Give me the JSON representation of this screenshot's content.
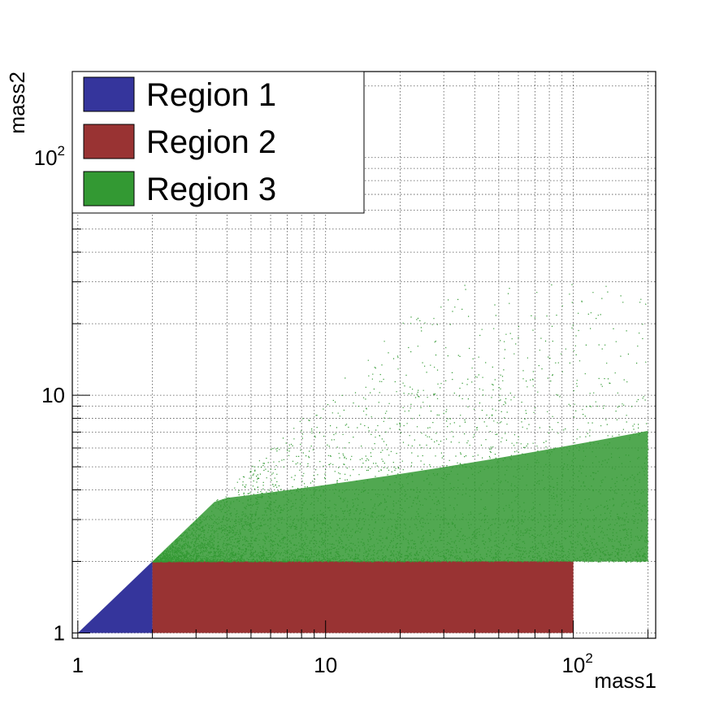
{
  "chart_data": {
    "type": "scatter",
    "xlabel": "mass1",
    "ylabel": "mass2",
    "x_scale": "log",
    "y_scale": "log",
    "xlim": [
      0.95,
      215
    ],
    "ylim": [
      0.95,
      230
    ],
    "grid": true,
    "grid_style": "dotted",
    "x_tick_labels": [
      {
        "value": 1,
        "base": "1",
        "exp": ""
      },
      {
        "value": 10,
        "base": "10",
        "exp": ""
      },
      {
        "value": 100,
        "base": "10",
        "exp": "2"
      }
    ],
    "y_tick_labels": [
      {
        "value": 1,
        "base": "1",
        "exp": ""
      },
      {
        "value": 10,
        "base": "10",
        "exp": ""
      },
      {
        "value": 100,
        "base": "10",
        "exp": "2"
      }
    ],
    "legend_position": "top-left",
    "series": [
      {
        "name": "Region 1",
        "color": "#35359c",
        "region": "1 <= mass2 <= mass1 <= 2"
      },
      {
        "name": "Region 2",
        "color": "#993333",
        "region": "2 <= mass1 <= 100, 1 <= mass2 <= 2"
      },
      {
        "name": "Region 3",
        "color": "#339933",
        "region": "2 <= mass2 <= mass1 <= 200"
      }
    ]
  },
  "colors": {
    "region1": "#35359c",
    "region2": "#993333",
    "region3": "#339933",
    "grid": "#555555",
    "frame": "#000000"
  }
}
